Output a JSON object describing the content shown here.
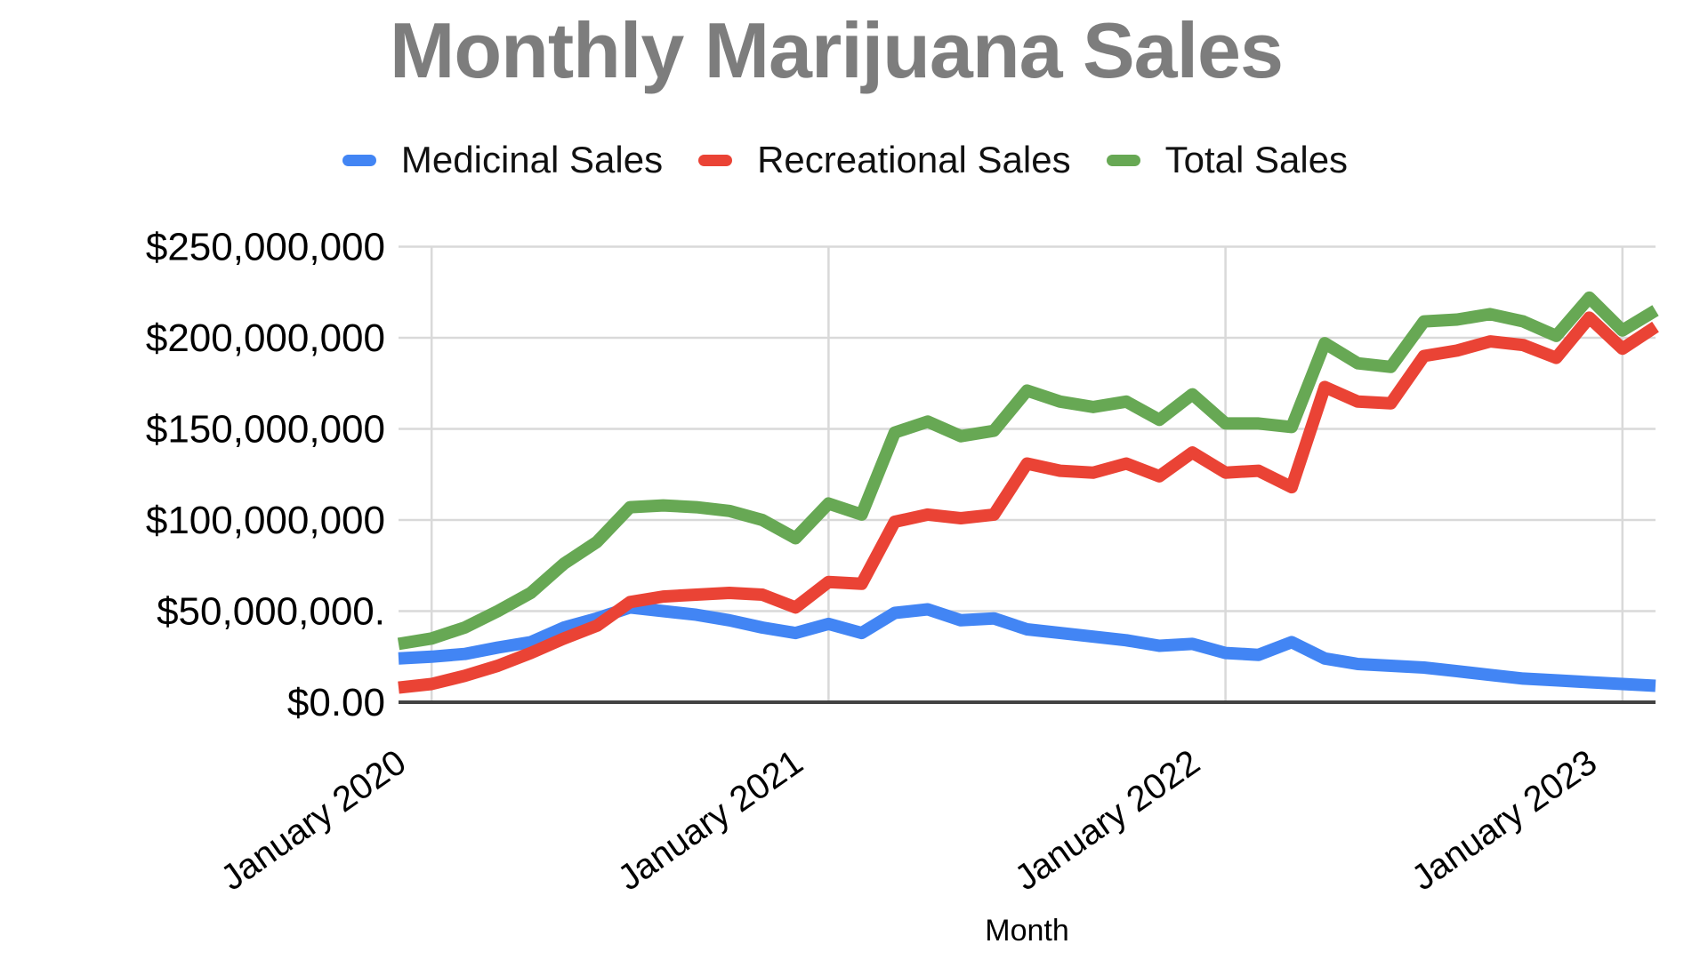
{
  "title": "Monthly Marijuana Sales",
  "legend": {
    "items": [
      {
        "label": "Medicinal Sales",
        "color": "#4285F4"
      },
      {
        "label": "Recreational Sales",
        "color": "#EA4335"
      },
      {
        "label": "Total Sales",
        "color": "#67A854"
      }
    ]
  },
  "x_axis": {
    "title": "Month",
    "tick_labels": [
      "January 2020",
      "January 2021",
      "January 2022",
      "January 2023"
    ],
    "tick_month_indices": [
      1,
      13,
      25,
      37
    ]
  },
  "y_axis": {
    "tick_labels": [
      "$250,000,000",
      "$200,000,000",
      "$150,000,000",
      "$100,000,000",
      "$50,000,000.",
      "$0.00"
    ],
    "tick_values": [
      250,
      200,
      150,
      100,
      50,
      0
    ]
  },
  "chart_data": {
    "type": "line",
    "title": "Monthly Marijuana Sales",
    "xlabel": "Month",
    "ylabel": "",
    "unit": "million USD",
    "ylim": [
      0,
      250
    ],
    "grid": true,
    "legend_position": "top",
    "x": [
      "Dec 2019",
      "Jan 2020",
      "Feb 2020",
      "Mar 2020",
      "Apr 2020",
      "May 2020",
      "Jun 2020",
      "Jul 2020",
      "Aug 2020",
      "Sep 2020",
      "Oct 2020",
      "Nov 2020",
      "Dec 2020",
      "Jan 2021",
      "Feb 2021",
      "Mar 2021",
      "Apr 2021",
      "May 2021",
      "Jun 2021",
      "Jul 2021",
      "Aug 2021",
      "Sep 2021",
      "Oct 2021",
      "Nov 2021",
      "Dec 2021",
      "Jan 2022",
      "Feb 2022",
      "Mar 2022",
      "Apr 2022",
      "May 2022",
      "Jun 2022",
      "Jul 2022",
      "Aug 2022",
      "Sep 2022",
      "Oct 2022",
      "Nov 2022",
      "Dec 2022",
      "Jan 2023",
      "Feb 2023"
    ],
    "series": [
      {
        "name": "Medicinal Sales",
        "color": "#4285F4",
        "values": [
          24,
          25,
          26.5,
          30,
          33,
          41,
          46,
          52,
          50,
          48,
          45,
          41,
          38,
          43,
          38,
          49,
          51,
          45,
          46,
          40,
          38,
          36,
          34,
          31,
          32,
          27,
          26,
          33,
          24,
          21,
          20,
          19,
          17,
          15,
          13,
          12,
          11,
          10,
          9
        ]
      },
      {
        "name": "Recreational Sales",
        "color": "#EA4335",
        "values": [
          8,
          10,
          14.5,
          20,
          27,
          35,
          42,
          55,
          58,
          59,
          60,
          59,
          52,
          66,
          65,
          99,
          103,
          101,
          103,
          131,
          127,
          126,
          131,
          124,
          137,
          126,
          127,
          118,
          173,
          165,
          164,
          190,
          193,
          198,
          196,
          189,
          211,
          194,
          206
        ]
      },
      {
        "name": "Total Sales",
        "color": "#67A854",
        "values": [
          32,
          35,
          41,
          50,
          60,
          76,
          88,
          107,
          108,
          107,
          105,
          100,
          90,
          109,
          103,
          148,
          154,
          146,
          149,
          171,
          165,
          162,
          165,
          155,
          169,
          153,
          153,
          151,
          197,
          186,
          184,
          209,
          210,
          213,
          209,
          201,
          222,
          204,
          215
        ]
      }
    ]
  }
}
